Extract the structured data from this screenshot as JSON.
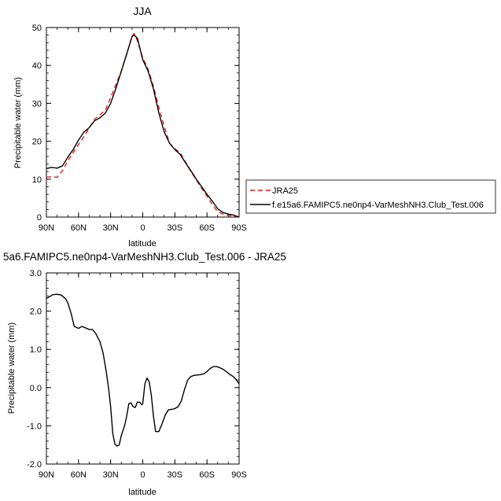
{
  "chart_data": [
    {
      "type": "line",
      "title": "JJA",
      "xlabel": "latitude",
      "ylabel": "Precipitable water (mm)",
      "xlim": [
        90,
        -90
      ],
      "ylim": [
        0,
        50
      ],
      "x_ticks": [
        {
          "value": 90,
          "label": "90N"
        },
        {
          "value": 60,
          "label": "60N"
        },
        {
          "value": 30,
          "label": "30N"
        },
        {
          "value": 0,
          "label": "0"
        },
        {
          "value": -30,
          "label": "30S"
        },
        {
          "value": -60,
          "label": "60S"
        },
        {
          "value": -90,
          "label": "90S"
        }
      ],
      "y_ticks": [
        0,
        10,
        20,
        30,
        40,
        50
      ],
      "legend_position": "right",
      "series": [
        {
          "name": "JRA25",
          "color": "#e31a1c",
          "dash": "dashed",
          "x": [
            90,
            85,
            80,
            75,
            70,
            65,
            60,
            55,
            50,
            45,
            40,
            35,
            30,
            25,
            20,
            15,
            10,
            8,
            5,
            0,
            -5,
            -10,
            -15,
            -20,
            -25,
            -30,
            -35,
            -40,
            -45,
            -50,
            -55,
            -60,
            -65,
            -70,
            -75,
            -80,
            -85,
            -90
          ],
          "values": [
            10.6,
            10.6,
            10.5,
            12.2,
            14.8,
            17.0,
            19.2,
            21.2,
            23.5,
            25.8,
            27.0,
            28.2,
            31.5,
            35.0,
            38.5,
            43.0,
            47.8,
            48.4,
            46.5,
            42.0,
            39.0,
            34.5,
            29.0,
            24.0,
            19.5,
            18.0,
            17.0,
            14.5,
            12.0,
            9.8,
            7.6,
            5.5,
            3.3,
            1.4,
            0.8,
            0.4,
            0.3,
            0.0
          ]
        },
        {
          "name": "f.e15a6.FAMIPC5.ne0np4-VarMeshNH3.Club_Test.006",
          "color": "#000000",
          "dash": "solid",
          "x": [
            90,
            85,
            80,
            75,
            70,
            65,
            60,
            55,
            50,
            45,
            40,
            35,
            30,
            25,
            20,
            15,
            10,
            8,
            5,
            0,
            -5,
            -10,
            -15,
            -20,
            -25,
            -30,
            -35,
            -40,
            -45,
            -50,
            -55,
            -60,
            -65,
            -70,
            -75,
            -80,
            -85,
            -90
          ],
          "values": [
            12.8,
            13.1,
            12.9,
            13.5,
            15.8,
            17.8,
            20.3,
            22.4,
            23.6,
            25.4,
            26.2,
            27.4,
            30.0,
            34.0,
            38.5,
            43.0,
            47.6,
            48.0,
            47.2,
            41.5,
            38.5,
            33.8,
            27.5,
            22.5,
            19.5,
            17.8,
            16.5,
            14.3,
            12.2,
            10.0,
            8.0,
            6.0,
            4.2,
            2.2,
            1.2,
            0.8,
            0.5,
            0.0
          ]
        }
      ]
    },
    {
      "type": "line",
      "title": "5a6.FAMIPC5.ne0np4-VarMeshNH3.Club_Test.006 - JRA25",
      "xlabel": "latitude",
      "ylabel": "Precipitable water (mm)",
      "xlim": [
        90,
        -90
      ],
      "ylim": [
        -2.0,
        3.0
      ],
      "x_ticks": [
        {
          "value": 90,
          "label": "90N"
        },
        {
          "value": 60,
          "label": "60N"
        },
        {
          "value": 30,
          "label": "30N"
        },
        {
          "value": 0,
          "label": "0"
        },
        {
          "value": -30,
          "label": "30S"
        },
        {
          "value": -60,
          "label": "60S"
        },
        {
          "value": -90,
          "label": "90S"
        }
      ],
      "y_ticks": [
        {
          "value": 3.0,
          "label": "3.0"
        },
        {
          "value": 2.0,
          "label": "2.0"
        },
        {
          "value": 1.0,
          "label": "1.0"
        },
        {
          "value": 0.0,
          "label": "0.0"
        },
        {
          "value": -1.0,
          "label": "-1.0"
        },
        {
          "value": -2.0,
          "label": "-2.0"
        }
      ],
      "series": [
        {
          "color": "#000000",
          "dash": "solid",
          "x": [
            90,
            87,
            84,
            80,
            76,
            72,
            70,
            67,
            64,
            60,
            57,
            54,
            50,
            47,
            44,
            40,
            37,
            34,
            32,
            30,
            28,
            26,
            24,
            22,
            20,
            17,
            15,
            13,
            11,
            9,
            7,
            5,
            3,
            1,
            0,
            -2,
            -4,
            -6,
            -8,
            -10,
            -12,
            -15,
            -18,
            -21,
            -24,
            -27,
            -30,
            -33,
            -36,
            -39,
            -42,
            -45,
            -48,
            -51,
            -54,
            -57,
            -60,
            -63,
            -66,
            -69,
            -72,
            -75,
            -78,
            -81,
            -84,
            -87,
            -90
          ],
          "values": [
            2.33,
            2.38,
            2.43,
            2.44,
            2.42,
            2.32,
            2.22,
            1.95,
            1.6,
            1.55,
            1.6,
            1.57,
            1.52,
            1.52,
            1.42,
            1.2,
            0.9,
            0.4,
            0.0,
            -0.5,
            -1.2,
            -1.48,
            -1.53,
            -1.5,
            -1.25,
            -1.0,
            -0.75,
            -0.42,
            -0.4,
            -0.5,
            -0.52,
            -0.38,
            -0.38,
            -0.45,
            -0.42,
            0.1,
            0.25,
            0.15,
            -0.2,
            -0.75,
            -1.15,
            -1.15,
            -0.95,
            -0.72,
            -0.58,
            -0.57,
            -0.55,
            -0.5,
            -0.35,
            -0.05,
            0.2,
            0.29,
            0.32,
            0.33,
            0.34,
            0.36,
            0.42,
            0.5,
            0.55,
            0.55,
            0.52,
            0.48,
            0.42,
            0.35,
            0.3,
            0.22,
            0.1
          ]
        }
      ]
    }
  ]
}
